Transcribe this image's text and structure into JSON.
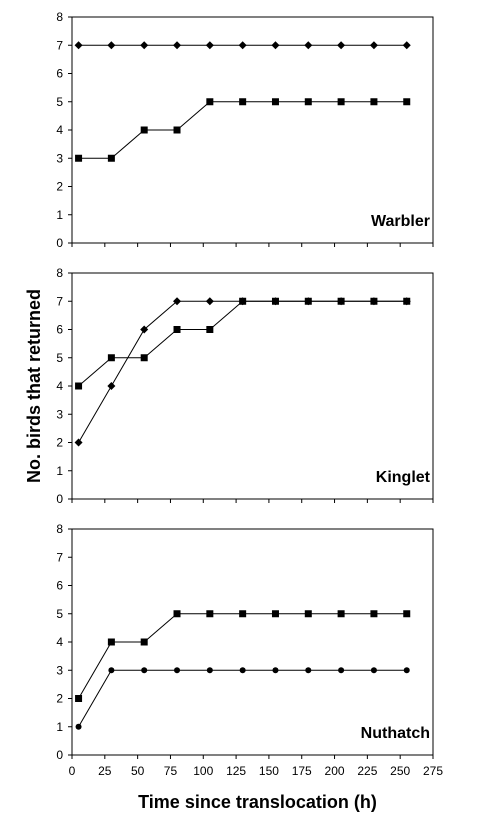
{
  "chart_data": {
    "type": "line",
    "xlabel": "Time since translocation (h)",
    "ylabel": "No. birds that returned",
    "x_ticks": [
      0,
      25,
      50,
      75,
      100,
      125,
      150,
      175,
      200,
      225,
      250,
      275
    ],
    "xlim": [
      0,
      275
    ],
    "ylim": [
      0,
      8
    ],
    "y_ticks": [
      0,
      1,
      2,
      3,
      4,
      5,
      6,
      7,
      8
    ],
    "grid": false,
    "x": [
      5,
      30,
      55,
      80,
      105,
      130,
      155,
      180,
      205,
      230,
      255
    ],
    "panels": [
      {
        "label": "Warbler",
        "series": [
          {
            "marker": "diamond",
            "values": [
              7,
              7,
              7,
              7,
              7,
              7,
              7,
              7,
              7,
              7,
              7
            ]
          },
          {
            "marker": "square",
            "values": [
              3,
              3,
              4,
              4,
              5,
              5,
              5,
              5,
              5,
              5,
              5
            ]
          }
        ]
      },
      {
        "label": "Kinglet",
        "series": [
          {
            "marker": "diamond",
            "values": [
              2,
              4,
              6,
              7,
              7,
              7,
              7,
              7,
              7,
              7,
              7
            ]
          },
          {
            "marker": "square",
            "values": [
              4,
              5,
              5,
              6,
              6,
              7,
              7,
              7,
              7,
              7,
              7
            ]
          }
        ]
      },
      {
        "label": "Nuthatch",
        "series": [
          {
            "marker": "circle",
            "values": [
              1,
              3,
              3,
              3,
              3,
              3,
              3,
              3,
              3,
              3,
              3
            ]
          },
          {
            "marker": "square",
            "values": [
              2,
              4,
              4,
              5,
              5,
              5,
              5,
              5,
              5,
              5,
              5
            ]
          }
        ]
      }
    ]
  }
}
